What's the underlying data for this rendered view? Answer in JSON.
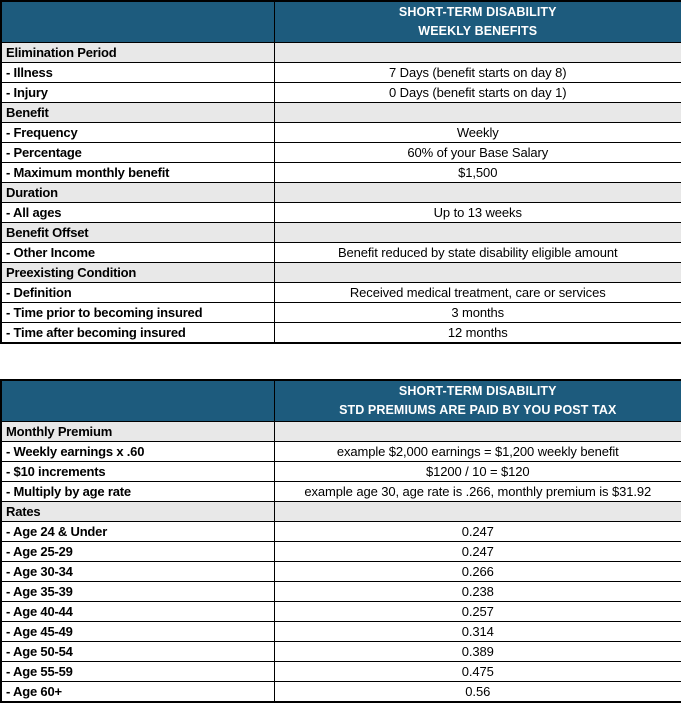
{
  "colors": {
    "header_bg": "#1d5b7d",
    "header_text": "#ffffff",
    "section_bg": "#e8e8e8",
    "border": "#000000"
  },
  "tables": [
    {
      "name": "weekly-benefits",
      "header": {
        "line1": "SHORT-TERM DISABILITY",
        "line2": "WEEKLY BENEFITS"
      },
      "rows": [
        {
          "type": "section",
          "label": "Elimination Period",
          "value": ""
        },
        {
          "type": "item",
          "label": "- Illness",
          "value": "7 Days (benefit starts on day 8)"
        },
        {
          "type": "item",
          "label": "- Injury",
          "value": "0 Days (benefit starts on day 1)"
        },
        {
          "type": "section",
          "label": "Benefit",
          "value": ""
        },
        {
          "type": "item",
          "label": "- Frequency",
          "value": "Weekly"
        },
        {
          "type": "item",
          "label": "- Percentage",
          "value": "60% of your Base Salary"
        },
        {
          "type": "item",
          "label": "- Maximum monthly benefit",
          "value": "$1,500"
        },
        {
          "type": "section",
          "label": "Duration",
          "value": ""
        },
        {
          "type": "item",
          "label": "- All ages",
          "value": "Up to 13 weeks"
        },
        {
          "type": "section",
          "label": "Benefit Offset",
          "value": ""
        },
        {
          "type": "item",
          "label": "- Other Income",
          "value": "Benefit reduced by state disability eligible amount"
        },
        {
          "type": "section",
          "label": "Preexisting Condition",
          "value": ""
        },
        {
          "type": "item",
          "label": "- Definition",
          "value": "Received medical treatment, care or services"
        },
        {
          "type": "item",
          "label": "- Time prior to becoming insured",
          "value": "3 months"
        },
        {
          "type": "item",
          "label": "- Time after becoming insured",
          "value": "12 months"
        }
      ]
    },
    {
      "name": "std-premiums",
      "header": {
        "line1": "SHORT-TERM DISABILITY",
        "line2": "STD PREMIUMS ARE PAID BY YOU POST TAX"
      },
      "rows": [
        {
          "type": "section",
          "label": "Monthly Premium",
          "value": ""
        },
        {
          "type": "item",
          "label": "- Weekly earnings x .60",
          "value": "example $2,000 earnings = $1,200 weekly benefit"
        },
        {
          "type": "item",
          "label": "- $10 increments",
          "value": "$1200 / 10 = $120"
        },
        {
          "type": "item",
          "label": "- Multiply by age rate",
          "value": "example age 30, age rate is .266, monthly premium is $31.92"
        },
        {
          "type": "section",
          "label": "Rates",
          "value": ""
        },
        {
          "type": "item",
          "label": "- Age 24 & Under",
          "value": "0.247"
        },
        {
          "type": "item",
          "label": "- Age 25-29",
          "value": "0.247"
        },
        {
          "type": "item",
          "label": "- Age 30-34",
          "value": "0.266"
        },
        {
          "type": "item",
          "label": "- Age 35-39",
          "value": "0.238"
        },
        {
          "type": "item",
          "label": "- Age 40-44",
          "value": "0.257"
        },
        {
          "type": "item",
          "label": "- Age 45-49",
          "value": "0.314"
        },
        {
          "type": "item",
          "label": "- Age 50-54",
          "value": "0.389"
        },
        {
          "type": "item",
          "label": "- Age 55-59",
          "value": "0.475"
        },
        {
          "type": "item",
          "label": "- Age 60+",
          "value": "0.56"
        }
      ]
    }
  ]
}
